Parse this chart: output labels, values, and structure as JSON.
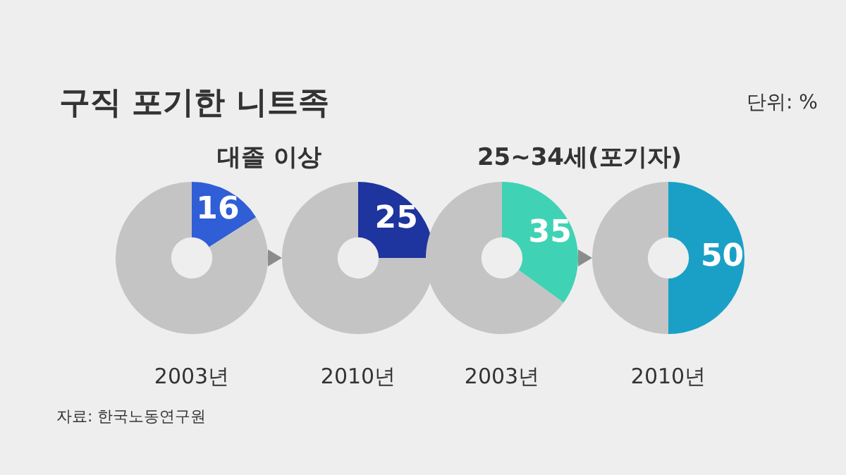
{
  "chart_data": [
    {
      "type": "donut",
      "title": "구직 포기한 니트족",
      "subtitle": "대졸 이상",
      "xlabel": "2003년",
      "categories": [
        null,
        null
      ],
      "values": [
        16,
        84
      ],
      "colors": [
        "#2f5ed6",
        "#c4c4c4"
      ],
      "value_labels": [
        "16",
        null
      ],
      "annotations": [
        "단위: %",
        "자료: 한국노동연구원"
      ]
    },
    {
      "type": "donut",
      "xlabel": "2010년",
      "categories": [
        null,
        null
      ],
      "values": [
        25,
        75
      ],
      "colors": [
        "#1e349e",
        "#c4c4c4"
      ],
      "value_labels": [
        "25",
        null
      ]
    },
    {
      "type": "donut",
      "subtitle": "25~34세(포기자)",
      "xlabel": "2003년",
      "categories": [
        null,
        null
      ],
      "values": [
        35,
        65
      ],
      "colors": [
        "#40d2b4",
        "#c4c4c4"
      ],
      "value_labels": [
        "35",
        null
      ]
    },
    {
      "type": "donut",
      "xlabel": "2010년",
      "categories": [
        null,
        null
      ],
      "values": [
        50,
        50
      ],
      "colors": [
        "#1aa0c6",
        "#c4c4c4"
      ],
      "value_labels": [
        "50",
        null
      ]
    }
  ]
}
